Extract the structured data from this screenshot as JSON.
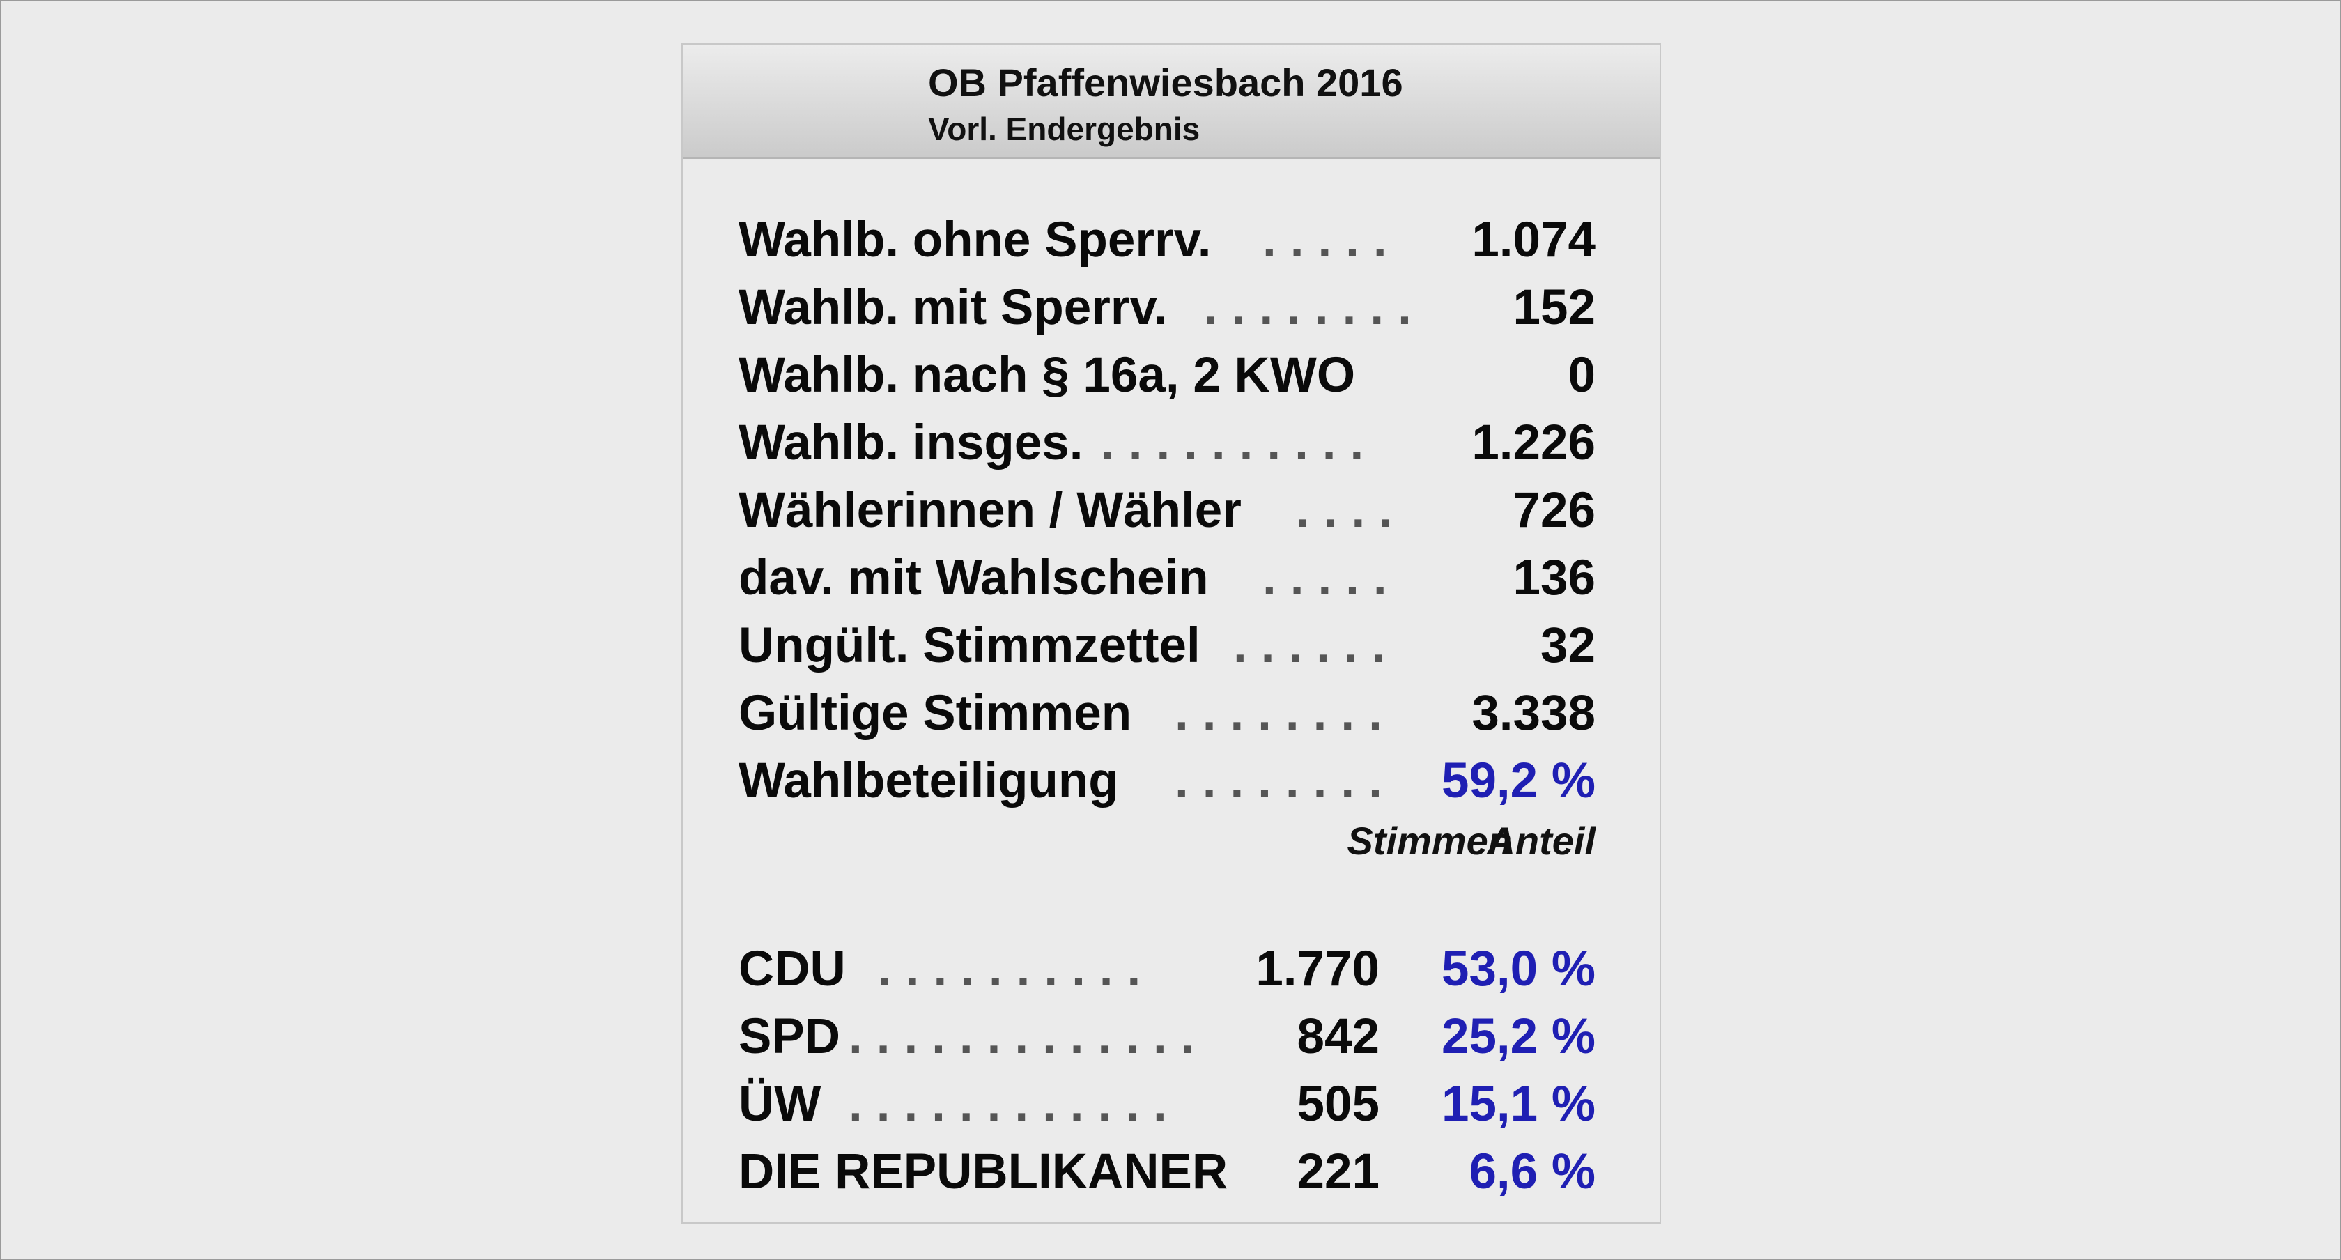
{
  "header": {
    "title": "OB Pfaffenwiesbach 2016",
    "subtitle": "Vorl. Endergebnis"
  },
  "summary": [
    {
      "label": "Wahlb. ohne Sperrv.",
      "dots": ".....",
      "value": "1.074"
    },
    {
      "label": "Wahlb. mit Sperrv.",
      "dots": "........",
      "value": "152"
    },
    {
      "label": "Wahlb. nach § 16a, 2 KWO",
      "dots": "",
      "value": "0"
    },
    {
      "label": "Wahlb. insges.",
      "dots": "..........",
      "value": "1.226"
    },
    {
      "label": "Wählerinnen / Wähler",
      "dots": "....",
      "value": "726"
    },
    {
      "label": "dav. mit Wahlschein",
      "dots": ".....",
      "value": "136"
    },
    {
      "label": "Ungült. Stimmzettel",
      "dots": "......",
      "value": "32"
    },
    {
      "label": "Gültige Stimmen",
      "dots": "........",
      "value": "3.338"
    },
    {
      "label": "Wahlbeteiligung",
      "dots": "........",
      "value": "59,2 %"
    }
  ],
  "columns": {
    "votes": "Stimmen",
    "share": "Anteil"
  },
  "parties": [
    {
      "name": "CDU",
      "dots": "..........",
      "votes": "1.770",
      "share": "53,0 %"
    },
    {
      "name": "SPD",
      "dots": ".............",
      "votes": "842",
      "share": "25,2 %"
    },
    {
      "name": "ÜW",
      "dots": "............",
      "votes": "505",
      "share": "15,1 %"
    },
    {
      "name": "DIE REPUBLIKANER",
      "dots": "",
      "votes": "221",
      "share": "6,6 %"
    }
  ],
  "colors": {
    "percent": "#1f1fb3",
    "text": "#0a0a0a",
    "background": "#ebebeb"
  }
}
